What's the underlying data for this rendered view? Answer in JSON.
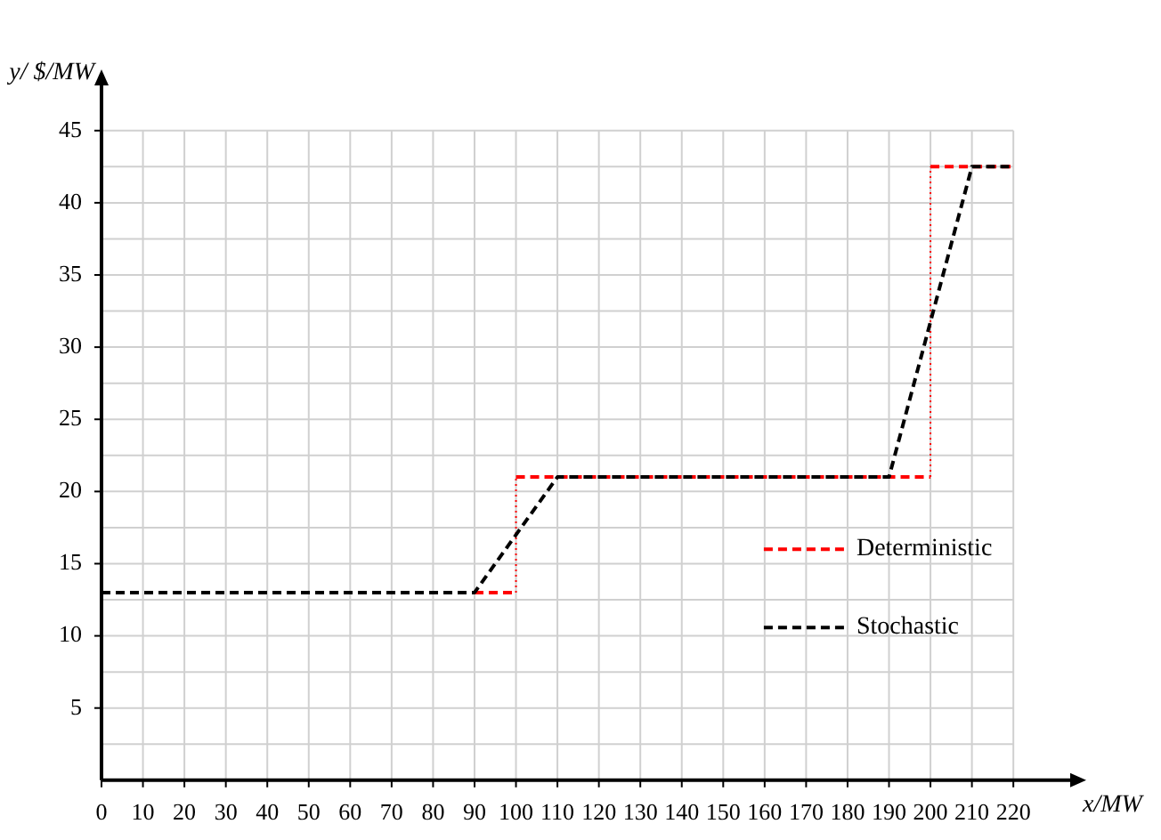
{
  "chart_data": {
    "type": "line",
    "xlabel": "x/MW",
    "ylabel": "y/ $/MW",
    "xlim": [
      0,
      235
    ],
    "xticks": [
      0,
      10,
      20,
      30,
      40,
      50,
      60,
      70,
      80,
      90,
      100,
      110,
      120,
      130,
      140,
      150,
      160,
      170,
      180,
      190,
      200,
      210,
      220
    ],
    "ylim": [
      0,
      48.5
    ],
    "yticks": [
      {
        "value": 2.5,
        "label": null
      },
      5,
      {
        "value": 7.5,
        "label": null
      },
      10,
      {
        "value": 12.5,
        "label": null
      },
      15,
      {
        "value": 17.5,
        "label": null
      },
      20,
      {
        "value": 22.5,
        "label": null
      },
      25,
      {
        "value": 27.5,
        "label": null
      },
      30,
      {
        "value": 32.5,
        "label": null
      },
      35,
      {
        "value": 37.5,
        "label": null
      },
      40,
      {
        "value": 42.5,
        "label": null
      },
      45
    ],
    "grid": true,
    "legend": "right",
    "line_style": "dashed",
    "marker": "none",
    "series": [
      {
        "name": "Deterministic",
        "color": "#ff0000",
        "x": [
          90,
          100,
          100,
          200,
          200,
          220
        ],
        "values": [
          13,
          13,
          21,
          21,
          42.5,
          42.5
        ]
      },
      {
        "name": "Stochastic",
        "color": "#000000",
        "x": [
          0,
          90,
          110,
          190,
          210,
          220
        ],
        "values": [
          13,
          13,
          21,
          21,
          42.5,
          42.5
        ]
      }
    ]
  }
}
